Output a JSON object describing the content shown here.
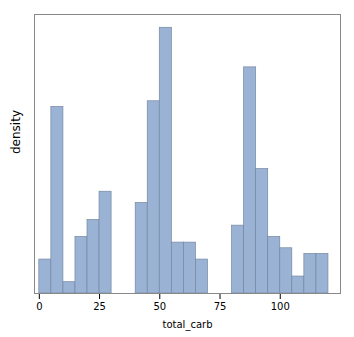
{
  "chart_data": {
    "type": "bar",
    "xlabel": "total_carb",
    "ylabel": "density",
    "x": [
      2.5,
      7.5,
      12.5,
      17.5,
      22.5,
      27.5,
      32.5,
      42.5,
      47.5,
      52.5,
      57.5,
      62.5,
      67.5,
      82.5,
      87.5,
      92.5,
      97.5,
      102.5,
      107.5,
      112.5,
      117.5
    ],
    "values": [
      0.006,
      0.033,
      0.002,
      0.01,
      0.013,
      0.018,
      0.0,
      0.016,
      0.034,
      0.047,
      0.009,
      0.009,
      0.006,
      0.012,
      0.04,
      0.022,
      0.01,
      0.008,
      0.003,
      0.007,
      0.007
    ],
    "bin_width": 5,
    "color": "#9ab3d5",
    "xlim": [
      -2,
      125
    ],
    "xticks": [
      0,
      25,
      50,
      75,
      100
    ],
    "ylim": [
      0,
      0.04935
    ],
    "tick_labels": "x",
    "grid": false
  }
}
